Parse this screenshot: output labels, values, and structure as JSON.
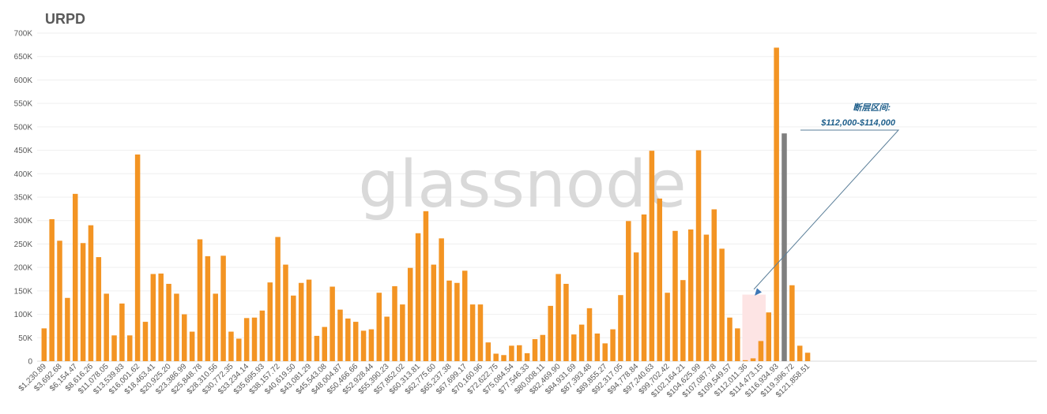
{
  "chart_data": {
    "type": "bar",
    "title": "URPD",
    "watermark": "glassnode",
    "ylim": [
      0,
      700000
    ],
    "y_ticks": [
      {
        "value": 0,
        "label": "0"
      },
      {
        "value": 50000,
        "label": "50K"
      },
      {
        "value": 100000,
        "label": "100K"
      },
      {
        "value": 150000,
        "label": "150K"
      },
      {
        "value": 200000,
        "label": "200K"
      },
      {
        "value": 250000,
        "label": "250K"
      },
      {
        "value": 300000,
        "label": "300K"
      },
      {
        "value": 350000,
        "label": "350K"
      },
      {
        "value": 400000,
        "label": "400K"
      },
      {
        "value": 450000,
        "label": "450K"
      },
      {
        "value": 500000,
        "label": "500K"
      },
      {
        "value": 550000,
        "label": "550K"
      },
      {
        "value": 600000,
        "label": "600K"
      },
      {
        "value": 650000,
        "label": "650K"
      },
      {
        "value": 700000,
        "label": "700K"
      }
    ],
    "grid": true,
    "legend": "none",
    "colors": {
      "bar": "#f39423",
      "current_bar": "#7f7f7f",
      "gap_band": "#fde4e4",
      "annotation": "#1f5f8b"
    },
    "x_tick_labels": [
      "$1,230.89",
      "$3,692.68",
      "$6,154.47",
      "$8,616.26",
      "$11,078.05",
      "$13,539.83",
      "$16,001.62",
      "$18,463.41",
      "$20,925.20",
      "$23,386.99",
      "$25,848.78",
      "$28,310.56",
      "$30,772.35",
      "$33,234.14",
      "$35,695.93",
      "$38,157.72",
      "$40,619.50",
      "$43,081.29",
      "$45,543.08",
      "$48,004.87",
      "$50,466.66",
      "$52,928.44",
      "$55,390.23",
      "$57,852.02",
      "$60,313.81",
      "$62,775.60",
      "$65,237.38",
      "$67,699.17",
      "$70,160.96",
      "$72,622.75",
      "$75,084.54",
      "$77,546.33",
      "$80,008.11",
      "$82,469.90",
      "$84,931.69",
      "$87,393.48",
      "$89,855.27",
      "$92,317.05",
      "$94,778.84",
      "$97,240.63",
      "$99,702.42",
      "$102,164.21",
      "$104,625.99",
      "$107,087.78",
      "$109,549.57",
      "$112,011.36",
      "$114,473.15",
      "$116,934.93",
      "$119,396.72",
      "$121,858.51"
    ],
    "values": [
      70000,
      303000,
      257000,
      135000,
      357000,
      252000,
      290000,
      222000,
      144000,
      55000,
      123000,
      55000,
      441000,
      84000,
      186000,
      187000,
      165000,
      144000,
      100000,
      63000,
      260000,
      224000,
      144000,
      225000,
      63000,
      48000,
      92000,
      93000,
      108000,
      168000,
      265000,
      206000,
      140000,
      167000,
      174000,
      54000,
      73000,
      159000,
      110000,
      91000,
      84000,
      65000,
      68000,
      146000,
      95000,
      160000,
      121000,
      199000,
      273000,
      320000,
      206000,
      262000,
      172000,
      167000,
      193000,
      121000,
      121000,
      40000,
      16000,
      13000,
      33000,
      34000,
      17000,
      47000,
      56000,
      118000,
      186000,
      165000,
      57000,
      78000,
      113000,
      59000,
      38000,
      68000,
      141000,
      299000,
      232000,
      313000,
      449000,
      347000,
      146000,
      278000,
      173000,
      281000,
      450000,
      270000,
      324000,
      240000,
      93000,
      70000,
      2000,
      6000,
      43000,
      104000,
      669000,
      486000,
      162000,
      33000,
      18000
    ],
    "current_price_bar_index": 95,
    "gap_band": {
      "from_index": 90,
      "to_index": 93,
      "y": 142000
    },
    "annotation": {
      "line1": "断层区间:",
      "line2": "$112,000-$114,000",
      "target_index": 91,
      "target_value": 150000
    }
  }
}
